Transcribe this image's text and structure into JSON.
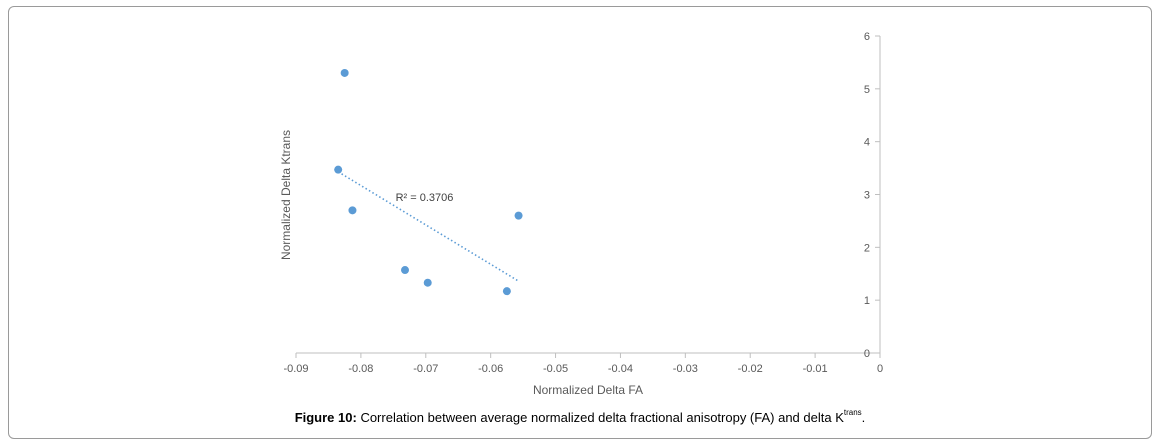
{
  "figure": {
    "label": "Figure 10:",
    "text": "Correlation between average normalized delta fractional anisotropy (FA) and delta K",
    "sup": "trans",
    "end": "."
  },
  "chart_data": {
    "type": "scatter",
    "xlabel": "Normalized Delta FA",
    "ylabel": "Normalized Delta Ktrans",
    "xlim": [
      -0.09,
      0
    ],
    "ylim": [
      0,
      6
    ],
    "x_ticks": [
      "-0.09",
      "-0.08",
      "-0.07",
      "-0.06",
      "-0.05",
      "-0.04",
      "-0.03",
      "-0.02",
      "-0.01",
      "0"
    ],
    "x_tick_values": [
      -0.09,
      -0.08,
      -0.07,
      -0.06,
      -0.05,
      -0.04,
      -0.03,
      -0.02,
      -0.01,
      0
    ],
    "y_ticks": [
      "0",
      "1",
      "2",
      "3",
      "4",
      "5",
      "6"
    ],
    "y_tick_values": [
      0,
      1,
      2,
      3,
      4,
      5,
      6
    ],
    "points": [
      {
        "x": -0.0825,
        "y": 5.3
      },
      {
        "x": -0.0835,
        "y": 3.47
      },
      {
        "x": -0.0813,
        "y": 2.7
      },
      {
        "x": -0.0732,
        "y": 1.57
      },
      {
        "x": -0.0697,
        "y": 1.33
      },
      {
        "x": -0.0575,
        "y": 1.17
      },
      {
        "x": -0.0557,
        "y": 2.6
      }
    ],
    "trendline": {
      "x": [
        -0.0835,
        -0.0557
      ],
      "y": [
        3.43,
        1.36
      ],
      "label": "R² = 0.3706",
      "label_at": {
        "x": -0.0702,
        "y": 2.88
      }
    },
    "grid": false,
    "marker_color": "#5b9bd5"
  }
}
